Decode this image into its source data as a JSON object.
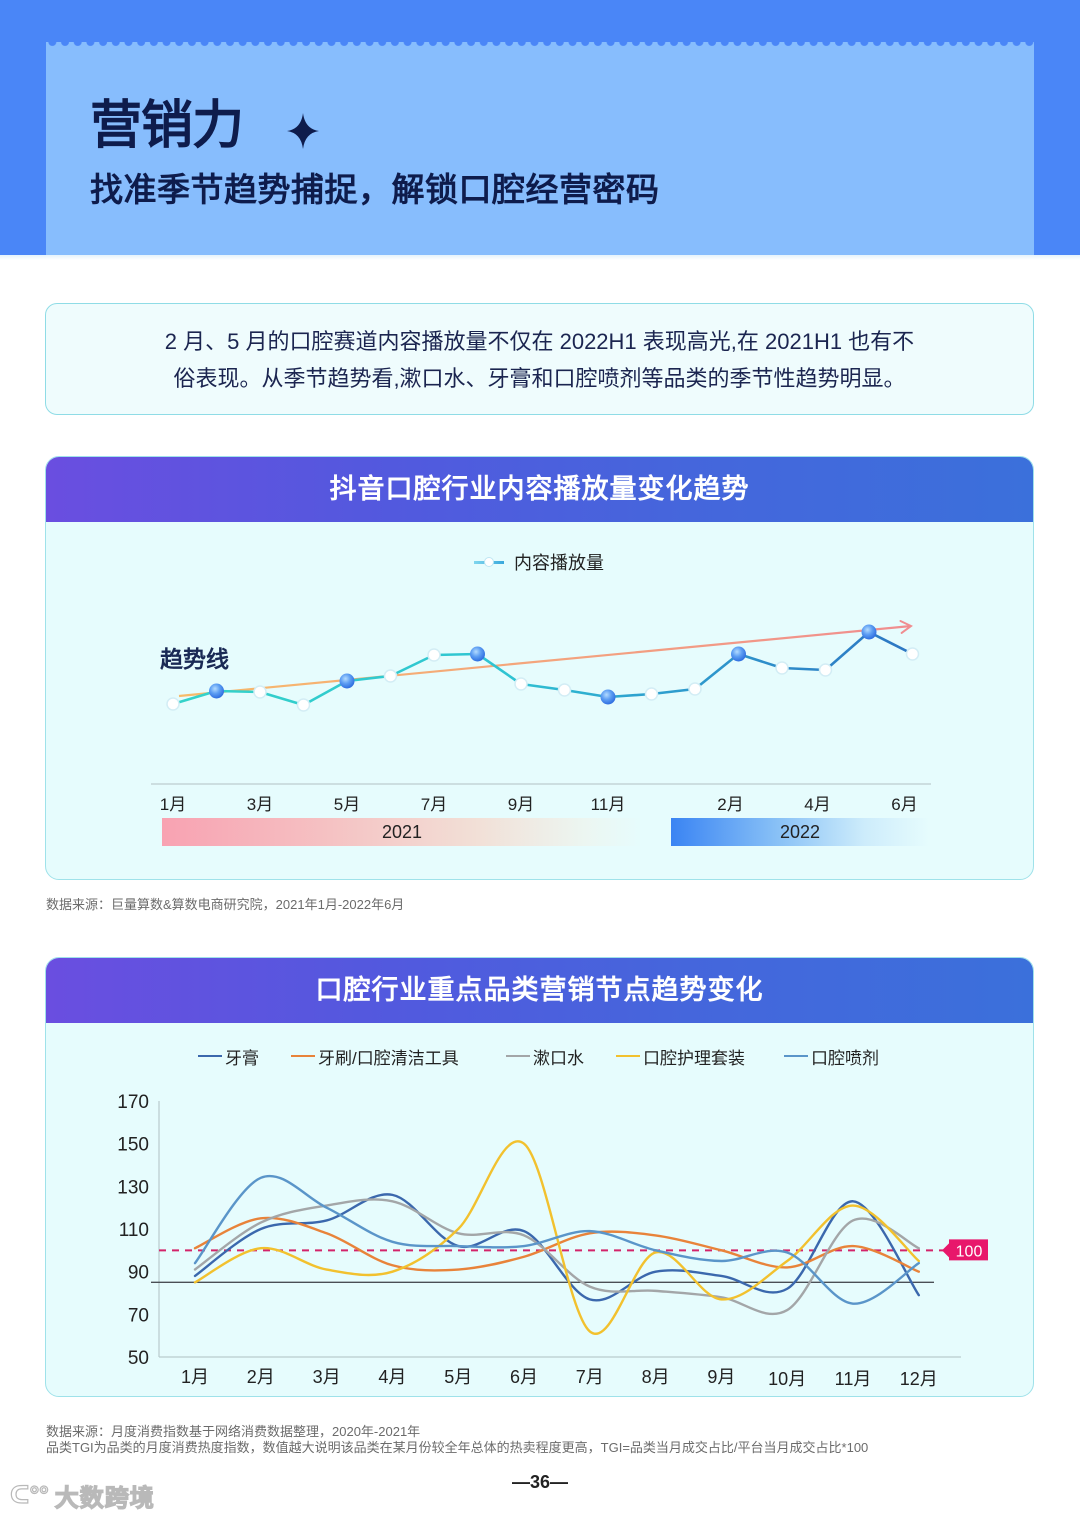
{
  "header": {
    "title": "营销力",
    "sparkle_icon": "four-point-star",
    "subtitle": "找准季节趋势捕捉，解锁口腔经营密码"
  },
  "summary": {
    "lines": [
      "2 月、5 月的口腔赛道内容播放量不仅在 2022H1 表现高光,在 2021H1 也有不",
      "俗表现。从季节趋势看,漱口水、牙膏和口腔喷剂等品类的季节性趋势明显。"
    ]
  },
  "card1": {
    "title": "抖音口腔行业内容播放量变化趋势",
    "legend_label": "内容播放量",
    "trend_label": "趋势线",
    "years": [
      "2021",
      "2022"
    ]
  },
  "source1": "数据来源：巨量算数&算数电商研究院，2021年1月-2022年6月",
  "card2": {
    "title": "口腔行业重点品类营销节点趋势变化",
    "legend": [
      {
        "label": "牙膏",
        "color": "#3b68ad"
      },
      {
        "label": "牙刷/口腔清洁工具",
        "color": "#e8833a"
      },
      {
        "label": "漱口水",
        "color": "#a3a6a8"
      },
      {
        "label": "口腔护理套装",
        "color": "#f2c12e"
      },
      {
        "label": "口腔喷剂",
        "color": "#5a95c9"
      }
    ],
    "reference_badge": "100"
  },
  "source2": {
    "lines": [
      "数据来源：月度消费指数基于网络消费数据整理，2020年-2021年",
      "品类TGI为品类的月度消费热度指数，数值越大说明该品类在某月份较全年总体的热卖程度更高，TGI=品类当月成交占比/平台当月成交占比*100"
    ]
  },
  "footer": {
    "page_number": "—36—",
    "watermark_logo": "ᑕ°°",
    "watermark": "大数跨境"
  },
  "colors": {
    "header_outer": "#4a86f7",
    "header_inner": "#87bdfd",
    "title_text": "#0e1c4c",
    "card_header_start": "#6a4ee0",
    "card_header_end": "#3b70db",
    "card_body": "#e6fcfd",
    "reference_line": "#d3246a",
    "badge": "#e8176b"
  },
  "chart_data": [
    {
      "type": "line",
      "title": "抖音口腔行业内容播放量变化趋势",
      "legend": [
        "内容播放量"
      ],
      "xlabel": "",
      "ylabel": "",
      "y_axis": "unlabeled (relative play-volume index)",
      "categories": [
        "1月",
        "2月",
        "3月",
        "4月",
        "5月",
        "6月",
        "7月",
        "8月",
        "9月",
        "10月",
        "11月",
        "12月",
        "1月",
        "2月",
        "3月",
        "4月",
        "5月",
        "6月"
      ],
      "year_groups": [
        {
          "label": "2021",
          "start": 0,
          "end": 11
        },
        {
          "label": "2022",
          "start": 12,
          "end": 17
        }
      ],
      "tick_labels": [
        "1月",
        "3月",
        "5月",
        "7月",
        "9月",
        "11月",
        "2月",
        "4月",
        "6月"
      ],
      "tick_indices": [
        0,
        2,
        4,
        6,
        8,
        10,
        13,
        15,
        17
      ],
      "series": [
        {
          "name": "内容播放量",
          "values": [
            80,
            93,
            92,
            79,
            103,
            108,
            129,
            130,
            100,
            94,
            87,
            90,
            95,
            130,
            116,
            114,
            152,
            130
          ]
        }
      ],
      "highlighted_points": [
        1,
        4,
        7,
        10,
        13,
        16
      ],
      "trend_line": {
        "label": "趋势线",
        "start_value": 88,
        "end_value": 158,
        "direction": "up"
      },
      "grid": false
    },
    {
      "type": "line",
      "title": "口腔行业重点品类营销节点趋势变化",
      "xlabel": "",
      "ylabel": "TGI",
      "categories": [
        "1月",
        "2月",
        "3月",
        "4月",
        "5月",
        "6月",
        "7月",
        "8月",
        "9月",
        "10月",
        "11月",
        "12月"
      ],
      "ylim": [
        50,
        170
      ],
      "yticks": [
        50,
        70,
        90,
        110,
        130,
        150,
        170
      ],
      "legend_position": "top",
      "grid": false,
      "series": [
        {
          "name": "牙膏",
          "color": "#3b68ad",
          "values": [
            88,
            110,
            114,
            126,
            102,
            109,
            77,
            90,
            88,
            82,
            123,
            79
          ]
        },
        {
          "name": "牙刷/口腔清洁工具",
          "color": "#e8833a",
          "values": [
            101,
            115,
            108,
            93,
            91,
            97,
            108,
            107,
            100,
            92,
            102,
            90
          ]
        },
        {
          "name": "漱口水",
          "color": "#a3a6a8",
          "values": [
            91,
            113,
            121,
            123,
            108,
            107,
            83,
            81,
            78,
            72,
            114,
            101
          ]
        },
        {
          "name": "口腔护理套装",
          "color": "#f2c12e",
          "values": [
            85,
            101,
            91,
            90,
            110,
            150,
            62,
            99,
            77,
            95,
            121,
            95
          ]
        },
        {
          "name": "口腔喷剂",
          "color": "#5a95c9",
          "values": [
            94,
            134,
            120,
            104,
            102,
            102,
            109,
            100,
            95,
            99,
            75,
            94
          ]
        }
      ],
      "reference_lines": [
        {
          "value": 100,
          "label": "100",
          "style": "dashed",
          "color": "#d3246a"
        },
        {
          "value": 85,
          "label": "",
          "style": "solid",
          "color": "#4a4f55"
        }
      ]
    }
  ]
}
